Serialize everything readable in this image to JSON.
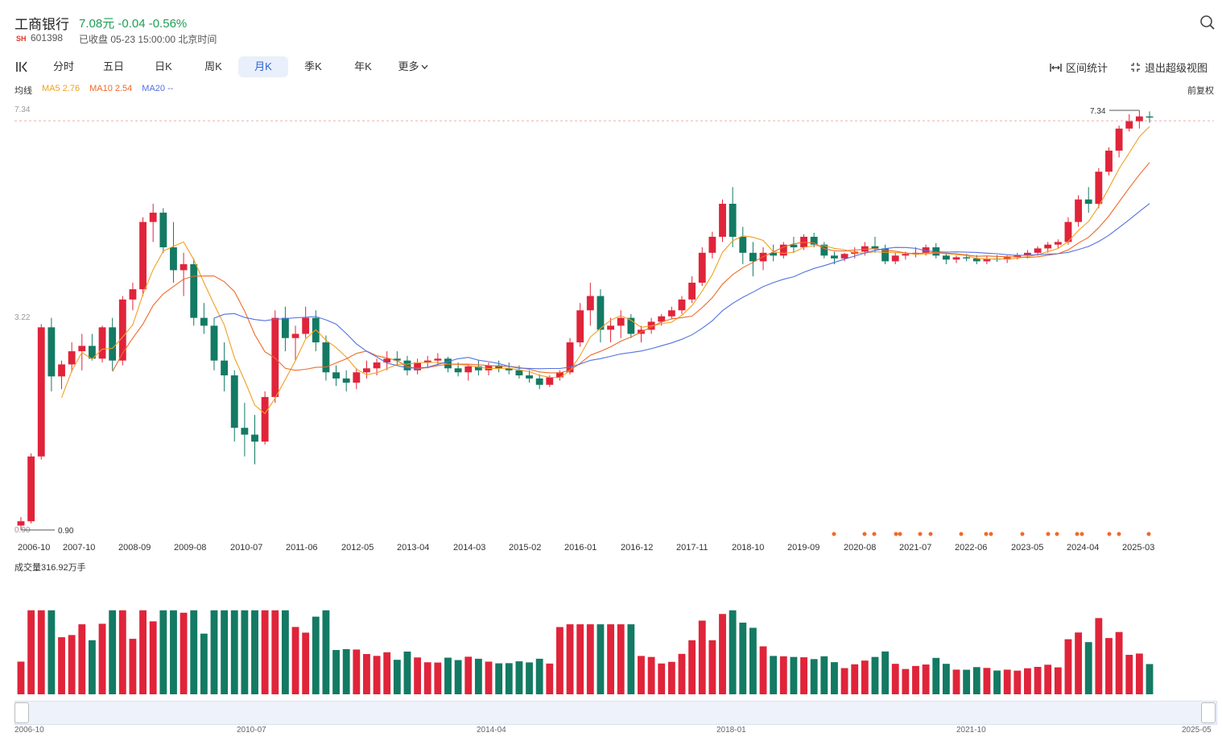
{
  "header": {
    "stock_name": "工商银行",
    "price_change": "7.08元 -0.04 -0.56%",
    "exchange": "SH",
    "code": "601398",
    "status": "已收盘 05-23 15:00:00 北京时间"
  },
  "tabs": [
    {
      "label": "分时",
      "active": false
    },
    {
      "label": "五日",
      "active": false
    },
    {
      "label": "日K",
      "active": false
    },
    {
      "label": "周K",
      "active": false
    },
    {
      "label": "月K",
      "active": true
    },
    {
      "label": "季K",
      "active": false
    },
    {
      "label": "年K",
      "active": false
    },
    {
      "label": "更多",
      "active": false
    }
  ],
  "tools": {
    "range_stats": "区间统计",
    "exit_fullscreen": "退出超级视图",
    "adjust": "前复权"
  },
  "ma_legend": {
    "label": "均线",
    "ma5": "MA5 2.76",
    "ma10": "MA10 2.54",
    "ma20": "MA20 --"
  },
  "colors": {
    "up": "#e0243a",
    "down": "#137a63",
    "ma5": "#f0a023",
    "ma10": "#ef6a2a",
    "ma20": "#5472e0",
    "active_tab": "#2a63d6"
  },
  "icons": [
    "sidebar-toggle-icon",
    "search-icon",
    "chevron-down-icon",
    "range-icon",
    "exit-fullscreen-icon"
  ],
  "chart_data": {
    "type": "candlestick",
    "scale": "log",
    "price_axis_ticks": [
      "7.34",
      "3.22",
      "0.90"
    ],
    "max_label": "7.34",
    "min_label": "0.90",
    "x_tick_labels": [
      "2006-10",
      "2007-10",
      "2008-09",
      "2009-08",
      "2010-07",
      "2011-06",
      "2012-05",
      "2013-04",
      "2014-03",
      "2015-02",
      "2016-01",
      "2016-12",
      "2017-11",
      "2018-10",
      "2019-09",
      "2020-08",
      "2021-07",
      "2022-06",
      "2023-05",
      "2024-04",
      "2025-03"
    ],
    "ohlc_monthly_approx": [
      [
        0.92,
        0.96,
        0.9,
        0.94
      ],
      [
        0.94,
        1.32,
        0.93,
        1.3
      ],
      [
        1.3,
        2.52,
        1.28,
        2.48
      ],
      [
        2.48,
        2.6,
        1.8,
        1.94
      ],
      [
        1.94,
        2.1,
        1.82,
        2.06
      ],
      [
        2.06,
        2.3,
        1.98,
        2.2
      ],
      [
        2.2,
        2.4,
        2.0,
        2.26
      ],
      [
        2.26,
        2.4,
        2.1,
        2.12
      ],
      [
        2.12,
        2.5,
        2.08,
        2.48
      ],
      [
        2.48,
        2.6,
        2.0,
        2.1
      ],
      [
        2.1,
        2.9,
        2.05,
        2.85
      ],
      [
        2.85,
        3.1,
        2.7,
        3.0
      ],
      [
        3.0,
        4.3,
        2.9,
        4.2
      ],
      [
        4.2,
        4.6,
        3.8,
        4.4
      ],
      [
        4.4,
        4.5,
        3.6,
        3.7
      ],
      [
        3.7,
        4.2,
        3.1,
        3.3
      ],
      [
        3.3,
        3.6,
        2.9,
        3.4
      ],
      [
        3.4,
        3.5,
        2.5,
        2.6
      ],
      [
        2.6,
        2.8,
        2.4,
        2.5
      ],
      [
        2.5,
        2.6,
        2.0,
        2.1
      ],
      [
        2.1,
        2.3,
        1.8,
        1.95
      ],
      [
        1.95,
        2.0,
        1.4,
        1.5
      ],
      [
        1.5,
        1.7,
        1.3,
        1.45
      ],
      [
        1.45,
        1.6,
        1.25,
        1.4
      ],
      [
        1.4,
        1.8,
        1.38,
        1.75
      ],
      [
        1.75,
        2.7,
        1.7,
        2.6
      ],
      [
        2.6,
        2.75,
        2.2,
        2.35
      ],
      [
        2.35,
        2.5,
        2.1,
        2.4
      ],
      [
        2.4,
        2.75,
        2.35,
        2.6
      ],
      [
        2.6,
        2.7,
        2.2,
        2.3
      ],
      [
        2.3,
        2.38,
        1.9,
        1.98
      ],
      [
        1.98,
        2.05,
        1.85,
        1.92
      ],
      [
        1.92,
        2.0,
        1.8,
        1.88
      ],
      [
        1.88,
        2.02,
        1.82,
        1.98
      ],
      [
        1.98,
        2.1,
        1.92,
        2.02
      ],
      [
        2.02,
        2.12,
        1.95,
        2.08
      ],
      [
        2.08,
        2.2,
        2.0,
        2.12
      ],
      [
        2.12,
        2.2,
        2.05,
        2.1
      ],
      [
        2.1,
        2.15,
        1.95,
        2.0
      ],
      [
        2.0,
        2.12,
        1.96,
        2.08
      ],
      [
        2.08,
        2.15,
        2.02,
        2.1
      ],
      [
        2.1,
        2.18,
        2.05,
        2.12
      ],
      [
        2.12,
        2.14,
        1.98,
        2.02
      ],
      [
        2.02,
        2.08,
        1.94,
        1.98
      ],
      [
        1.98,
        2.06,
        1.9,
        2.04
      ],
      [
        2.04,
        2.1,
        1.95,
        2.0
      ],
      [
        2.0,
        2.08,
        1.95,
        2.05
      ],
      [
        2.05,
        2.1,
        1.98,
        2.02
      ],
      [
        2.02,
        2.08,
        1.96,
        2.0
      ],
      [
        2.0,
        2.05,
        1.92,
        1.95
      ],
      [
        1.95,
        2.0,
        1.88,
        1.92
      ],
      [
        1.92,
        1.96,
        1.82,
        1.86
      ],
      [
        1.86,
        1.95,
        1.84,
        1.93
      ],
      [
        1.93,
        2.0,
        1.9,
        1.98
      ],
      [
        1.98,
        2.35,
        1.96,
        2.3
      ],
      [
        2.3,
        2.8,
        2.25,
        2.7
      ],
      [
        2.7,
        3.1,
        2.5,
        2.9
      ],
      [
        2.9,
        3.0,
        2.3,
        2.45
      ],
      [
        2.45,
        2.6,
        2.3,
        2.5
      ],
      [
        2.5,
        2.7,
        2.35,
        2.6
      ],
      [
        2.6,
        2.65,
        2.35,
        2.4
      ],
      [
        2.4,
        2.5,
        2.3,
        2.45
      ],
      [
        2.45,
        2.6,
        2.4,
        2.55
      ],
      [
        2.55,
        2.65,
        2.5,
        2.62
      ],
      [
        2.62,
        2.75,
        2.58,
        2.7
      ],
      [
        2.7,
        2.9,
        2.65,
        2.85
      ],
      [
        2.85,
        3.2,
        2.8,
        3.1
      ],
      [
        3.1,
        3.7,
        3.05,
        3.6
      ],
      [
        3.6,
        4.0,
        3.5,
        3.9
      ],
      [
        3.9,
        4.7,
        3.8,
        4.6
      ],
      [
        4.6,
        5.0,
        3.7,
        3.9
      ],
      [
        3.9,
        4.1,
        3.4,
        3.6
      ],
      [
        3.6,
        3.8,
        3.2,
        3.45
      ],
      [
        3.45,
        3.7,
        3.3,
        3.6
      ],
      [
        3.6,
        3.75,
        3.45,
        3.55
      ],
      [
        3.55,
        3.8,
        3.5,
        3.75
      ],
      [
        3.75,
        3.9,
        3.6,
        3.7
      ],
      [
        3.7,
        3.95,
        3.65,
        3.9
      ],
      [
        3.9,
        3.98,
        3.7,
        3.75
      ],
      [
        3.75,
        3.8,
        3.5,
        3.55
      ],
      [
        3.55,
        3.62,
        3.4,
        3.5
      ],
      [
        3.5,
        3.6,
        3.45,
        3.58
      ],
      [
        3.58,
        3.7,
        3.5,
        3.62
      ],
      [
        3.62,
        3.8,
        3.55,
        3.72
      ],
      [
        3.72,
        3.9,
        3.6,
        3.68
      ],
      [
        3.68,
        3.75,
        3.4,
        3.45
      ],
      [
        3.45,
        3.6,
        3.4,
        3.55
      ],
      [
        3.55,
        3.62,
        3.48,
        3.58
      ],
      [
        3.58,
        3.7,
        3.52,
        3.6
      ],
      [
        3.6,
        3.75,
        3.55,
        3.7
      ],
      [
        3.7,
        3.78,
        3.5,
        3.55
      ],
      [
        3.55,
        3.6,
        3.4,
        3.48
      ],
      [
        3.48,
        3.55,
        3.42,
        3.52
      ],
      [
        3.52,
        3.58,
        3.45,
        3.5
      ],
      [
        3.5,
        3.56,
        3.4,
        3.45
      ],
      [
        3.45,
        3.55,
        3.4,
        3.5
      ],
      [
        3.5,
        3.56,
        3.44,
        3.48
      ],
      [
        3.48,
        3.55,
        3.42,
        3.52
      ],
      [
        3.52,
        3.6,
        3.48,
        3.56
      ],
      [
        3.56,
        3.65,
        3.5,
        3.6
      ],
      [
        3.6,
        3.72,
        3.55,
        3.68
      ],
      [
        3.68,
        3.8,
        3.6,
        3.75
      ],
      [
        3.75,
        3.85,
        3.68,
        3.8
      ],
      [
        3.8,
        4.3,
        3.75,
        4.2
      ],
      [
        4.2,
        4.8,
        4.1,
        4.7
      ],
      [
        4.7,
        5.0,
        4.4,
        4.6
      ],
      [
        4.6,
        5.5,
        4.5,
        5.4
      ],
      [
        5.4,
        6.1,
        5.3,
        6.0
      ],
      [
        6.0,
        6.8,
        5.8,
        6.7
      ],
      [
        6.7,
        7.2,
        6.6,
        6.95
      ],
      [
        6.95,
        7.34,
        6.7,
        7.12
      ],
      [
        7.12,
        7.3,
        6.9,
        7.08
      ]
    ],
    "legend": [
      "MA5 2.76",
      "MA10 2.54",
      "MA20 --"
    ],
    "volume_label": "成交量316.92万手",
    "navigator_labels": [
      "2006-10",
      "2010-07",
      "2014-04",
      "2018-01",
      "2021-10",
      "2025-05"
    ]
  }
}
